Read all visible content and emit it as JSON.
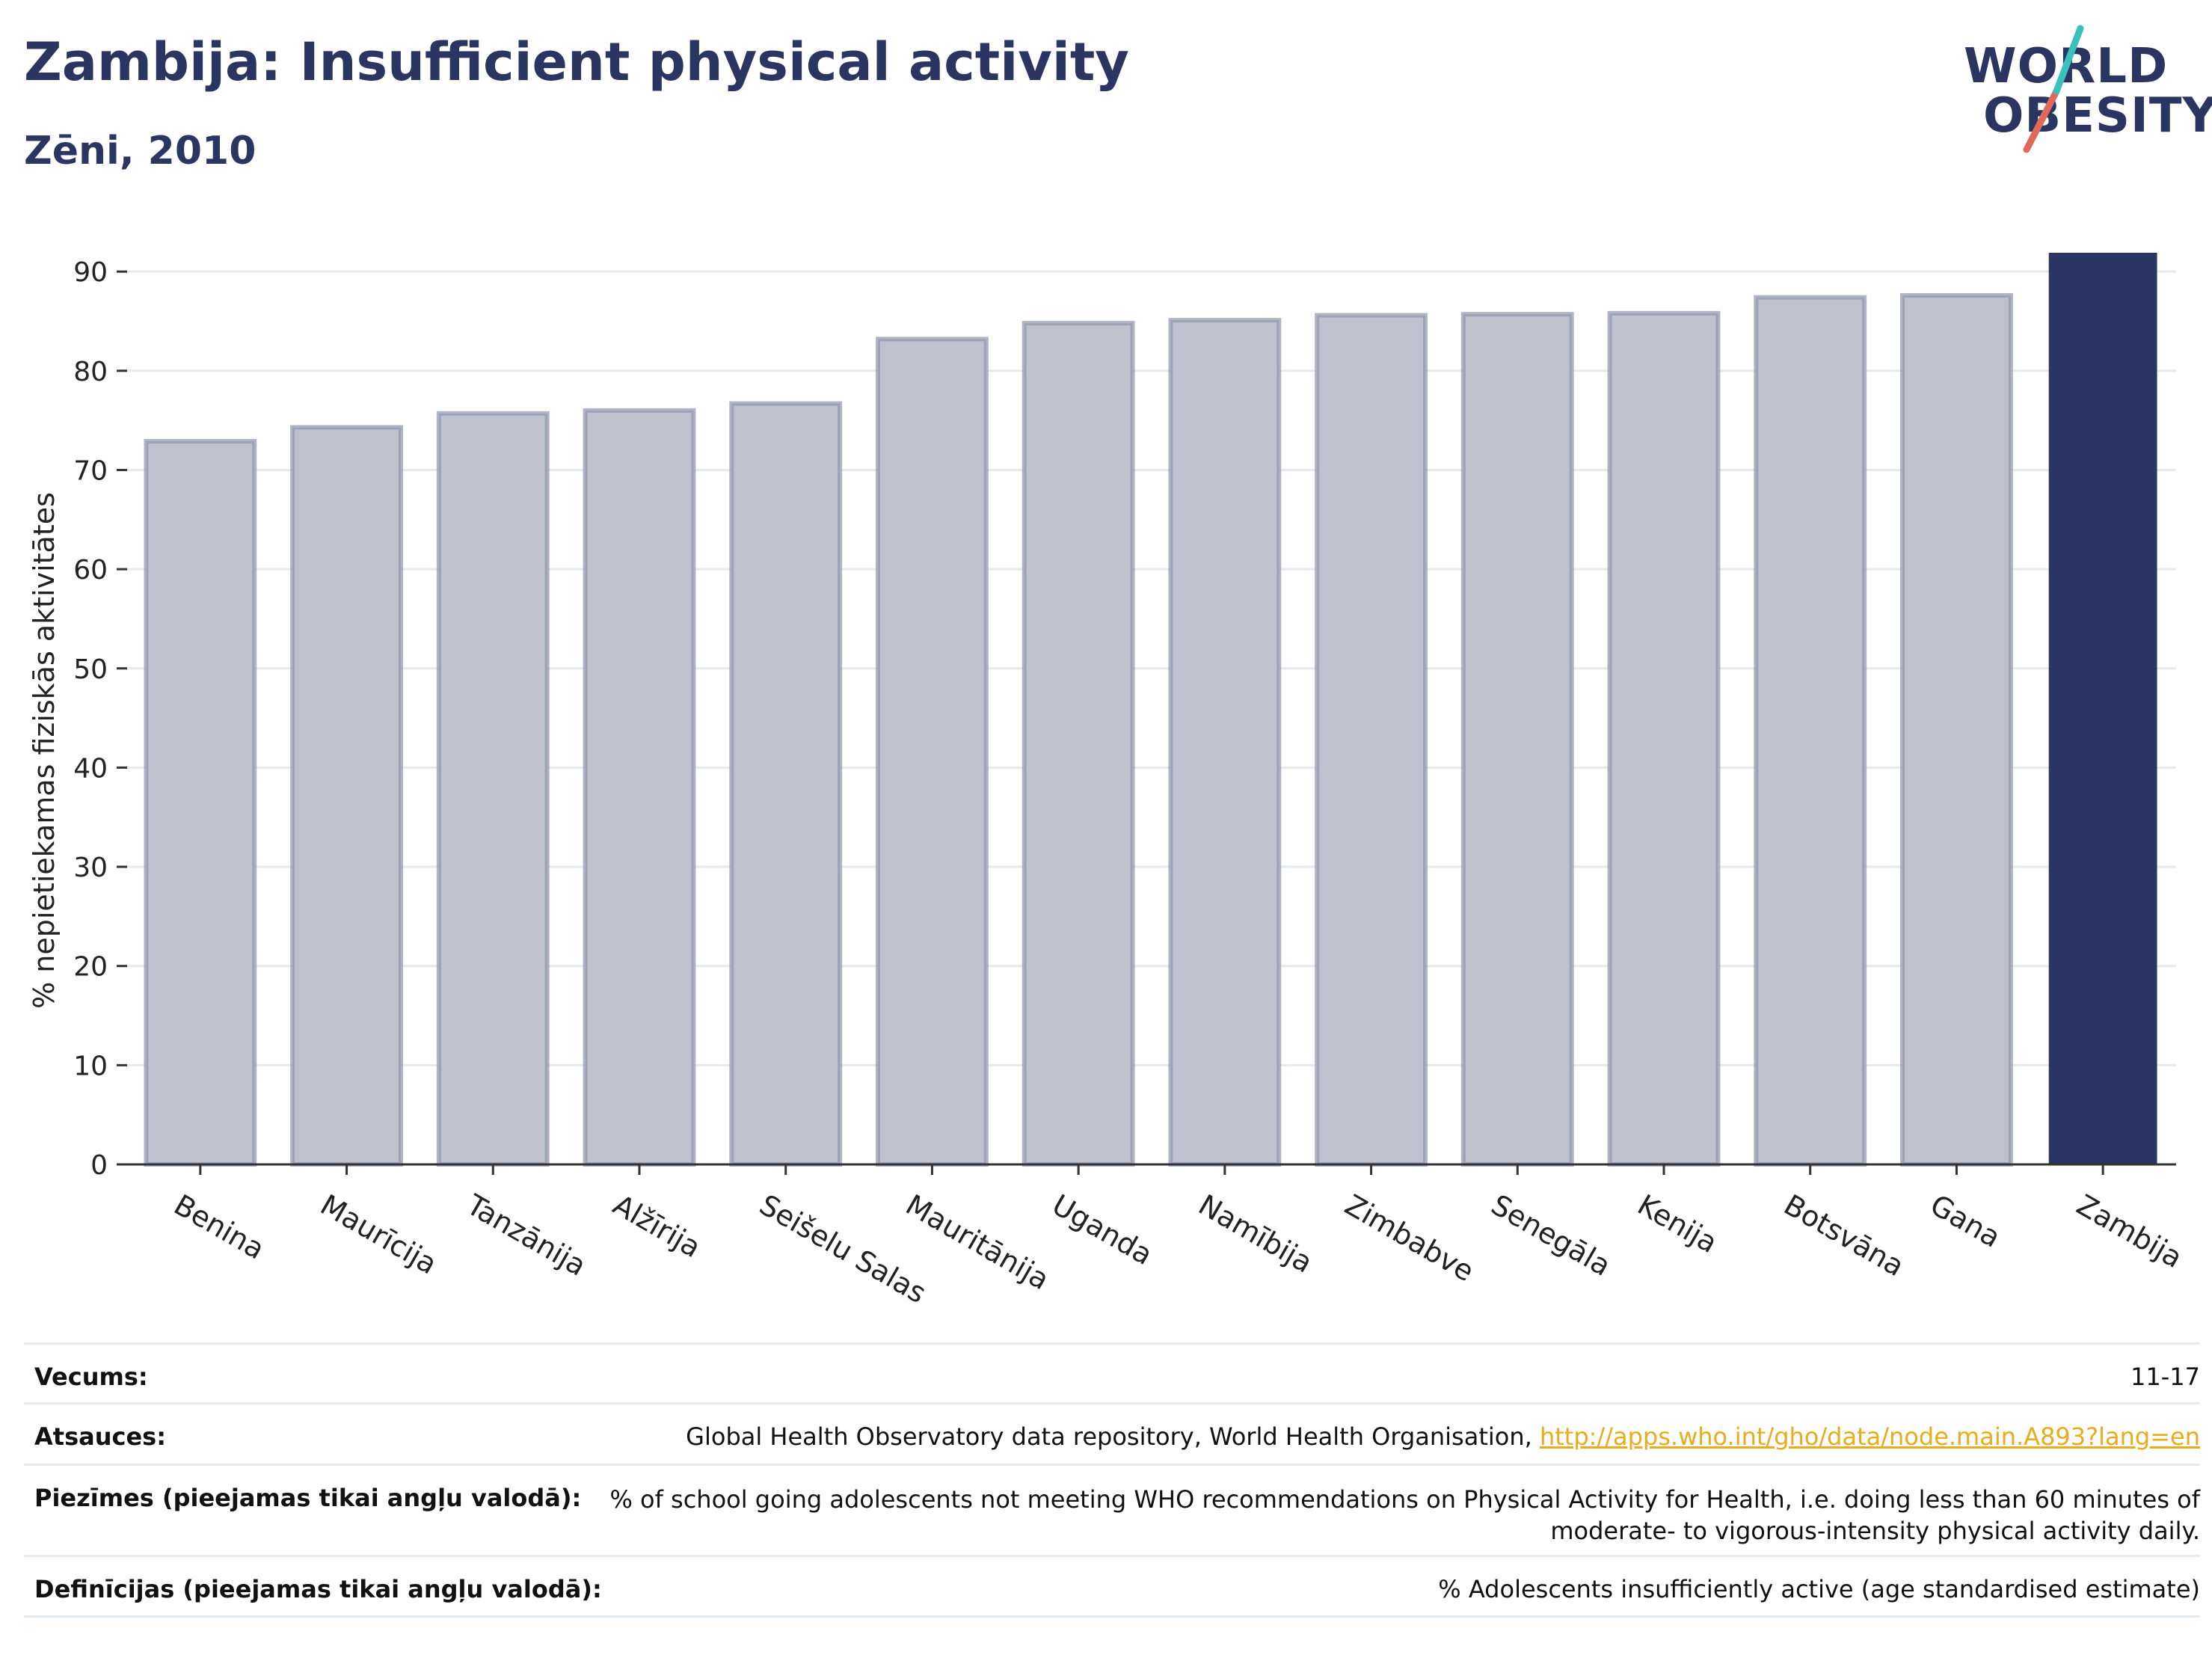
{
  "header": {
    "title": "Zambija: Insufficient physical activity",
    "subtitle": "Zēni, 2010"
  },
  "logo": {
    "line1": "WORLD",
    "line2": "OBESITY",
    "colors": {
      "text": "#2a3561",
      "slash_teal": "#3bbfbf",
      "slash_coral": "#e0695a"
    }
  },
  "chart_data": {
    "type": "bar",
    "categories": [
      "Benina",
      "Maurīcija",
      "Tanzānija",
      "Alžīrija",
      "Seišelu Salas",
      "Mauritānija",
      "Uganda",
      "Namībija",
      "Zimbabve",
      "Senegāla",
      "Kenija",
      "Botsvāna",
      "Gana",
      "Zambija"
    ],
    "values": [
      72.9,
      74.3,
      75.7,
      76.0,
      76.7,
      83.2,
      84.8,
      85.1,
      85.6,
      85.7,
      85.8,
      87.4,
      87.6,
      91.9
    ],
    "highlight": "Zambija",
    "ylabel": "% nepietiekamas fiziskās aktivitātes",
    "xlabel": "",
    "ylim": [
      0,
      92.5
    ],
    "yticks": [
      0,
      10,
      20,
      30,
      40,
      50,
      60,
      70,
      80,
      90
    ],
    "grid": true,
    "colors": {
      "bar": "#bfc2ce",
      "bar_edge": "#8e94ae",
      "highlight": "#2a3561",
      "grid": "#e6e9ee"
    }
  },
  "footer": {
    "rows": [
      {
        "key": "Vecums:",
        "value": "11-17"
      },
      {
        "key": "Atsauces:",
        "value": "Global Health Observatory data repository, World Health Organisation, ",
        "link": "http://apps.who.int/gho/data/node.main.A893?lang=en"
      },
      {
        "key": "Piezīmes (pieejamas tikai angļu valodā):",
        "value": "% of school going adolescents not meeting WHO recommendations on Physical Activity for Health, i.e. doing less than 60 minutes of moderate- to vigorous-intensity physical activity daily."
      },
      {
        "key": "Definīcijas (pieejamas tikai angļu valodā):",
        "value": "% Adolescents insufficiently active (age standardised estimate)"
      }
    ]
  }
}
